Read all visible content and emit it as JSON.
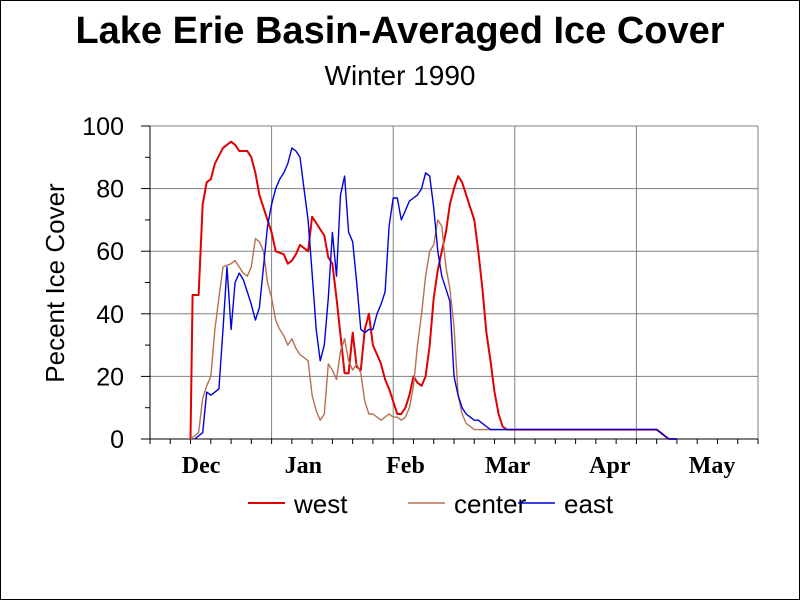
{
  "chart_data": {
    "type": "line",
    "title": "Lake Erie Basin-Averaged Ice Cover",
    "subtitle": "Winter 1990",
    "ylabel": "Pecent Ice Cover",
    "xlabel": "",
    "ylim": [
      0,
      100
    ],
    "yticks": [
      0,
      20,
      40,
      60,
      80,
      100
    ],
    "xlim": [
      0,
      150
    ],
    "month_labels": [
      "Dec",
      "Jan",
      "Feb",
      "Mar",
      "Apr",
      "May"
    ],
    "month_label_positions_day": [
      15.5,
      46.5,
      76,
      105.5,
      136,
      166.5
    ],
    "x_units": "days since Nov 15",
    "grid": true,
    "legend_position": "bottom",
    "series": [
      {
        "name": "west",
        "color": "#e00000",
        "x": [
          10,
          10.5,
          12,
          13,
          14,
          15,
          16,
          18,
          19,
          20,
          21,
          22,
          24,
          25,
          26,
          27,
          29,
          30,
          31,
          33,
          34,
          35,
          36,
          37,
          38,
          39,
          40,
          41,
          42,
          43,
          44,
          45,
          46,
          48,
          49,
          50,
          51,
          52,
          53,
          54,
          55,
          56,
          57,
          58,
          59,
          60,
          61,
          62,
          63,
          64,
          65,
          66,
          67,
          68,
          69,
          70,
          71,
          72,
          73,
          74,
          75,
          76,
          77,
          78,
          79,
          80,
          81,
          82,
          83,
          84,
          85,
          86,
          87,
          88,
          89,
          90,
          91,
          92,
          93,
          94,
          95,
          96,
          97,
          98,
          100,
          105,
          110,
          115,
          120,
          125,
          128,
          130
        ],
        "values": [
          0,
          46,
          46,
          75,
          82,
          83,
          88,
          93,
          94,
          95,
          94,
          92,
          92,
          90,
          85,
          78,
          70,
          66,
          60,
          59,
          56,
          57,
          59,
          62,
          61,
          60,
          71,
          69,
          67,
          65,
          58,
          56,
          45,
          21,
          21,
          34,
          23,
          22,
          35,
          40,
          30,
          27,
          24,
          19,
          16,
          12,
          8,
          8,
          10,
          14,
          20,
          18,
          17,
          20,
          30,
          45,
          54,
          60,
          66,
          75,
          80,
          84,
          82,
          78,
          74,
          70,
          60,
          48,
          34,
          25,
          15,
          8,
          4,
          3,
          3,
          3,
          3,
          3,
          3,
          3,
          3,
          3,
          3,
          3,
          3,
          3,
          3,
          3,
          3,
          3,
          0,
          0
        ]
      },
      {
        "name": "center",
        "color": "#b87050",
        "x": [
          10,
          12,
          13,
          14,
          15,
          16,
          17,
          18,
          20,
          21,
          22,
          23,
          24,
          25,
          26,
          27,
          28,
          29,
          30,
          31,
          32,
          33,
          34,
          35,
          36,
          37,
          38,
          39,
          40,
          41,
          42,
          43,
          44,
          45,
          46,
          47,
          48,
          49,
          50,
          51,
          52,
          53,
          54,
          55,
          56,
          57,
          58,
          59,
          60,
          61,
          62,
          63,
          64,
          65,
          66,
          67,
          68,
          69,
          70,
          71,
          72,
          73,
          74,
          75,
          76,
          77,
          78,
          79,
          80,
          81,
          82,
          83,
          84,
          85,
          86,
          87,
          88,
          90,
          95,
          100,
          105,
          110,
          115,
          120,
          125,
          128,
          130
        ],
        "values": [
          0,
          2,
          13,
          17,
          20,
          35,
          45,
          55,
          56,
          57,
          55,
          53,
          52,
          55,
          64,
          63,
          60,
          50,
          45,
          38,
          35,
          33,
          30,
          32,
          29,
          27,
          26,
          25,
          14,
          9,
          6,
          8,
          24,
          22,
          19,
          28,
          32,
          25,
          22,
          24,
          21,
          12,
          8,
          8,
          7,
          6,
          7,
          8,
          7,
          7,
          6,
          7,
          10,
          17,
          30,
          40,
          52,
          60,
          62,
          70,
          68,
          55,
          48,
          36,
          14,
          8,
          5,
          4,
          3,
          3,
          3,
          3,
          3,
          3,
          3,
          3,
          3,
          3,
          3,
          3,
          3,
          3,
          3,
          3,
          3,
          0,
          0
        ]
      },
      {
        "name": "east",
        "color": "#0000e0",
        "x": [
          11,
          13,
          14,
          15,
          16,
          17,
          18,
          19,
          20,
          21,
          22,
          23,
          24,
          25,
          26,
          27,
          28,
          29,
          30,
          31,
          32,
          33,
          34,
          35,
          36,
          37,
          38,
          39,
          40,
          41,
          42,
          43,
          44,
          45,
          46,
          47,
          48,
          49,
          50,
          51,
          52,
          53,
          54,
          55,
          56,
          57,
          58,
          59,
          60,
          61,
          62,
          63,
          64,
          65,
          66,
          67,
          68,
          69,
          70,
          71,
          72,
          73,
          74,
          75,
          76,
          77,
          78,
          79,
          80,
          81,
          82,
          83,
          84,
          85,
          86,
          87,
          88,
          89,
          90,
          91,
          92,
          93,
          94,
          95,
          96,
          98,
          100,
          102,
          105,
          110,
          115,
          120,
          125,
          128,
          130
        ],
        "values": [
          0,
          2,
          15,
          14,
          15,
          16,
          35,
          55,
          35,
          50,
          53,
          51,
          47,
          43,
          38,
          42,
          55,
          68,
          75,
          80,
          83,
          85,
          88,
          93,
          92,
          90,
          80,
          70,
          53,
          35,
          25,
          30,
          45,
          66,
          52,
          78,
          84,
          66,
          63,
          50,
          35,
          34,
          35,
          35,
          40,
          43,
          47,
          68,
          77,
          77,
          70,
          73,
          76,
          77,
          78,
          80,
          85,
          84,
          74,
          60,
          52,
          48,
          44,
          20,
          14,
          10,
          8,
          7,
          6,
          6,
          5,
          4,
          3,
          3,
          3,
          3,
          3,
          3,
          3,
          3,
          3,
          3,
          3,
          3,
          3,
          3,
          3,
          3,
          3,
          3,
          3,
          3,
          3,
          0,
          0
        ]
      }
    ]
  }
}
